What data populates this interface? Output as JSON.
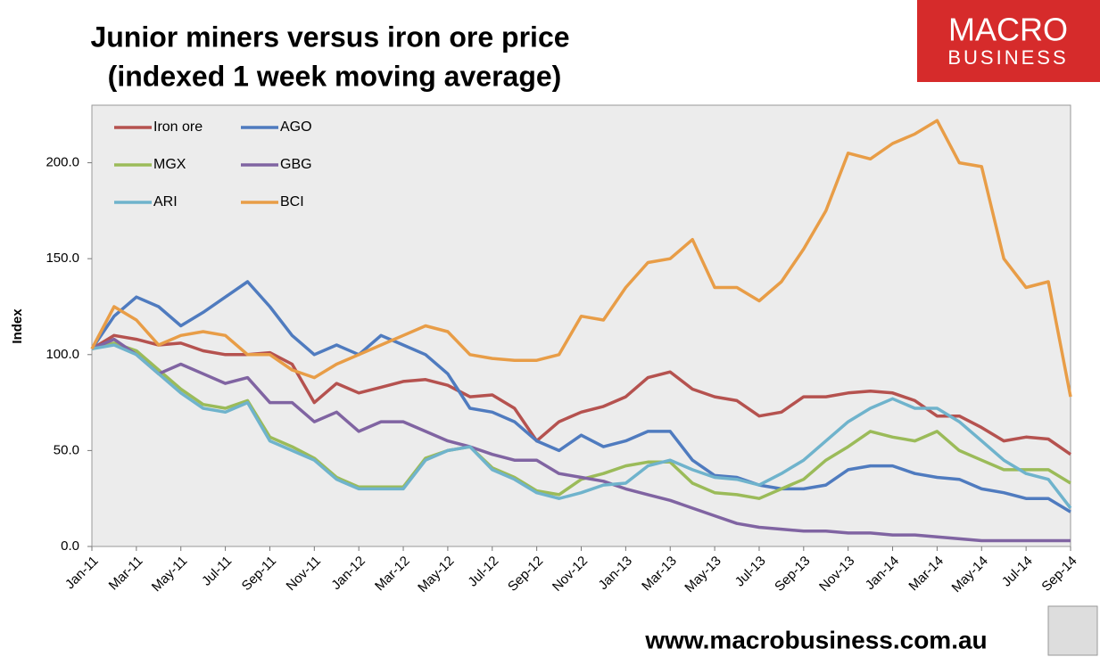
{
  "chart_data": {
    "type": "line",
    "title": "Junior miners versus iron ore price",
    "subtitle": "(indexed 1 week moving average)",
    "y_label": "Index",
    "logo": {
      "line1": "MACRO",
      "line2": "BUSINESS"
    },
    "footer": "www.macrobusiness.com.au",
    "categories": [
      "Jan-11",
      null,
      "Mar-11",
      null,
      "May-11",
      null,
      "Jul-11",
      null,
      "Sep-11",
      null,
      "Nov-11",
      null,
      "Jan-12",
      null,
      "Mar-12",
      null,
      "May-12",
      null,
      "Jul-12",
      null,
      "Sep-12",
      null,
      "Nov-12",
      null,
      "Jan-13",
      null,
      "Mar-13",
      null,
      "May-13",
      null,
      "Jul-13",
      null,
      "Sep-13",
      null,
      "Nov-13",
      null,
      "Jan-14",
      null,
      "Mar-14",
      null,
      "May-14",
      null,
      "Jul-14",
      null,
      "Sep-14"
    ],
    "ylim": [
      0,
      230
    ],
    "yticks": [
      {
        "value": 0,
        "label": "0.0"
      },
      {
        "value": 50,
        "label": "50.0"
      },
      {
        "value": 100,
        "label": "100.0"
      },
      {
        "value": 150,
        "label": "150.0"
      },
      {
        "value": 200,
        "label": "200.0"
      }
    ],
    "grid": false,
    "legend": "top-left",
    "series": [
      {
        "name": "Iron ore",
        "color": "#b5524f",
        "values": [
          103,
          110,
          108,
          105,
          106,
          102,
          100,
          100,
          101,
          95,
          75,
          85,
          80,
          83,
          86,
          87,
          84,
          78,
          79,
          72,
          55,
          65,
          70,
          73,
          78,
          88,
          91,
          82,
          78,
          76,
          68,
          70,
          78,
          78,
          80,
          81,
          80,
          76,
          68,
          68,
          62,
          55,
          57,
          56,
          48
        ]
      },
      {
        "name": "AGO",
        "color": "#4f7bbf",
        "values": [
          103,
          120,
          130,
          125,
          115,
          122,
          130,
          138,
          125,
          110,
          100,
          105,
          100,
          110,
          105,
          100,
          90,
          72,
          70,
          65,
          55,
          50,
          58,
          52,
          55,
          60,
          60,
          45,
          37,
          36,
          32,
          30,
          30,
          32,
          40,
          42,
          42,
          38,
          36,
          35,
          30,
          28,
          25,
          25,
          18
        ]
      },
      {
        "name": "MGX",
        "color": "#9bbb59",
        "values": [
          103,
          106,
          102,
          92,
          82,
          74,
          72,
          76,
          57,
          52,
          46,
          36,
          31,
          31,
          31,
          46,
          50,
          52,
          41,
          36,
          29,
          27,
          35,
          38,
          42,
          44,
          44,
          33,
          28,
          27,
          25,
          30,
          35,
          45,
          52,
          60,
          57,
          55,
          60,
          50,
          45,
          40,
          40,
          40,
          33
        ]
      },
      {
        "name": "GBG",
        "color": "#8064a2",
        "values": [
          103,
          108,
          100,
          90,
          95,
          90,
          85,
          88,
          75,
          75,
          65,
          70,
          60,
          65,
          65,
          60,
          55,
          52,
          48,
          45,
          45,
          38,
          36,
          34,
          30,
          27,
          24,
          20,
          16,
          12,
          10,
          9,
          8,
          8,
          7,
          7,
          6,
          6,
          5,
          4,
          3,
          3,
          3,
          3,
          3
        ]
      },
      {
        "name": "ARI",
        "color": "#6fb3cc",
        "values": [
          103,
          105,
          100,
          90,
          80,
          72,
          70,
          75,
          55,
          50,
          45,
          35,
          30,
          30,
          30,
          45,
          50,
          52,
          40,
          35,
          28,
          25,
          28,
          32,
          33,
          42,
          45,
          40,
          36,
          35,
          32,
          38,
          45,
          55,
          65,
          72,
          77,
          72,
          72,
          65,
          55,
          45,
          38,
          35,
          20
        ]
      },
      {
        "name": "BCI",
        "color": "#e89d47",
        "values": [
          103,
          125,
          118,
          105,
          110,
          112,
          110,
          100,
          100,
          92,
          88,
          95,
          100,
          105,
          110,
          115,
          112,
          100,
          98,
          97,
          97,
          100,
          120,
          118,
          135,
          148,
          150,
          160,
          135,
          135,
          128,
          138,
          155,
          175,
          205,
          202,
          210,
          215,
          222,
          200,
          198,
          150,
          135,
          138,
          78
        ]
      }
    ]
  }
}
